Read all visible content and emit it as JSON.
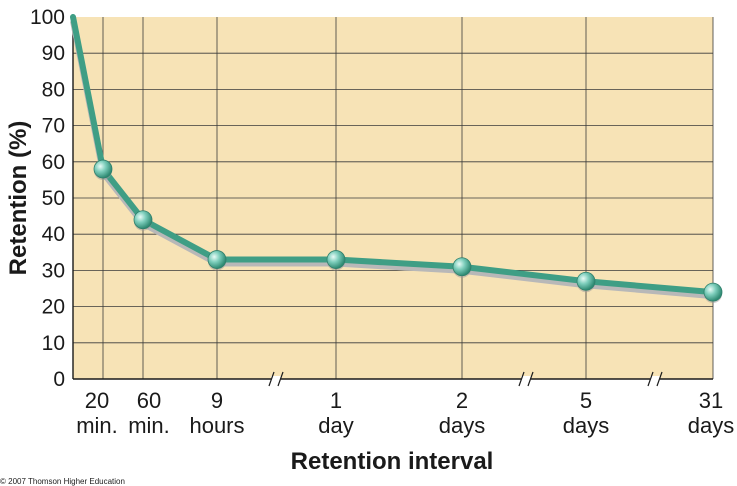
{
  "chart_data": {
    "type": "line",
    "title": "",
    "xlabel": "Retention interval",
    "ylabel": "Retention (%)",
    "ylim": [
      0,
      100
    ],
    "yticks": [
      "0",
      "10",
      "20",
      "30",
      "40",
      "50",
      "60",
      "70",
      "80",
      "90",
      "100"
    ],
    "categories": [
      {
        "line1": "",
        "line2": ""
      },
      {
        "line1": "20",
        "line2": "min."
      },
      {
        "line1": "60",
        "line2": "min."
      },
      {
        "line1": "9",
        "line2": "hours"
      },
      {
        "line1": "1",
        "line2": "day"
      },
      {
        "line1": "2",
        "line2": "days"
      },
      {
        "line1": "5",
        "line2": "days"
      },
      {
        "line1": "31",
        "line2": "days"
      }
    ],
    "series": [
      {
        "values": [
          100,
          58,
          44,
          33,
          33,
          31,
          27,
          24
        ]
      }
    ],
    "grid": true,
    "axis_breaks": [
      "between 9 hours and 1 day",
      "between 2 days and 5 days",
      "between 5 days and 31 days"
    ],
    "colors": {
      "background": "#f7e3b6",
      "grid": "#3a3a3a",
      "line": "#3f9e85",
      "shadow": "#b8b8b8",
      "marker": "#6fc3b0"
    }
  },
  "credit": "© 2007 Thomson Higher Education"
}
